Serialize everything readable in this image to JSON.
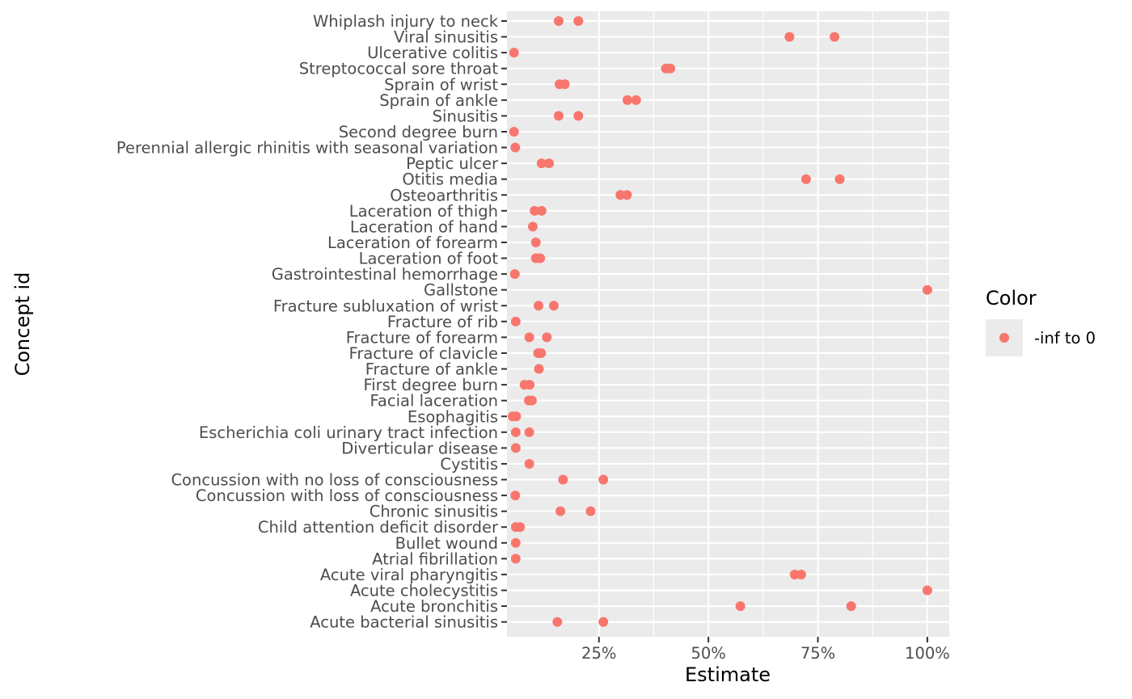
{
  "chart_data": {
    "type": "scatter",
    "title": "",
    "xlabel": "Estimate",
    "ylabel": "Concept id",
    "xlim": [
      0.04,
      1.05
    ],
    "x_ticks": [
      {
        "value": 0.25,
        "label": "25%"
      },
      {
        "value": 0.5,
        "label": "50%"
      },
      {
        "value": 0.75,
        "label": "75%"
      },
      {
        "value": 1.0,
        "label": "100%"
      }
    ],
    "grid": true,
    "legend": {
      "title": "Color",
      "position": "right",
      "entries": [
        {
          "label": "-inf to 0",
          "color": "#F8766D"
        }
      ]
    },
    "point_color": "#F8766D",
    "categories": [
      "Whiplash injury to neck",
      "Viral sinusitis",
      "Ulcerative colitis",
      "Streptococcal sore throat",
      "Sprain of wrist",
      "Sprain of ankle",
      "Sinusitis",
      "Second degree burn",
      "Perennial allergic rhinitis with seasonal variation",
      "Peptic ulcer",
      "Otitis media",
      "Osteoarthritis",
      "Laceration of thigh",
      "Laceration of hand",
      "Laceration of forearm",
      "Laceration of foot",
      "Gastrointestinal hemorrhage",
      "Gallstone",
      "Fracture subluxation of wrist",
      "Fracture of rib",
      "Fracture of forearm",
      "Fracture of clavicle",
      "Fracture of ankle",
      "First degree burn",
      "Facial laceration",
      "Esophagitis",
      "Escherichia coli urinary tract infection",
      "Diverticular disease",
      "Cystitis",
      "Concussion with no loss of consciousness",
      "Concussion with loss of consciousness",
      "Chronic sinusitis",
      "Child attention deficit disorder",
      "Bullet wound",
      "Atrial fibrillation",
      "Acute viral pharyngitis",
      "Acute cholecystitis",
      "Acute bronchitis",
      "Acute bacterial sinusitis"
    ],
    "points": [
      {
        "category": "Whiplash injury to neck",
        "values": [
          0.158,
          0.203
        ]
      },
      {
        "category": "Viral sinusitis",
        "values": [
          0.685,
          0.788
        ]
      },
      {
        "category": "Ulcerative colitis",
        "values": [
          0.056
        ]
      },
      {
        "category": "Streptococcal sore throat",
        "values": [
          0.403,
          0.413
        ]
      },
      {
        "category": "Sprain of wrist",
        "values": [
          0.16,
          0.172
        ]
      },
      {
        "category": "Sprain of ankle",
        "values": [
          0.315,
          0.335
        ]
      },
      {
        "category": "Sinusitis",
        "values": [
          0.158,
          0.203
        ]
      },
      {
        "category": "Second degree burn",
        "values": [
          0.056
        ]
      },
      {
        "category": "Perennial allergic rhinitis with seasonal variation",
        "values": [
          0.059
        ]
      },
      {
        "category": "Peptic ulcer",
        "values": [
          0.119,
          0.136
        ]
      },
      {
        "category": "Otitis media",
        "values": [
          0.723,
          0.8
        ]
      },
      {
        "category": "Osteoarthritis",
        "values": [
          0.299,
          0.314
        ]
      },
      {
        "category": "Laceration of thigh",
        "values": [
          0.103,
          0.119
        ]
      },
      {
        "category": "Laceration of hand",
        "values": [
          0.099
        ]
      },
      {
        "category": "Laceration of forearm",
        "values": [
          0.106
        ]
      },
      {
        "category": "Laceration of foot",
        "values": [
          0.106,
          0.116
        ]
      },
      {
        "category": "Gastrointestinal hemorrhage",
        "values": [
          0.058
        ]
      },
      {
        "category": "Gallstone",
        "values": [
          1.0
        ]
      },
      {
        "category": "Fracture subluxation of wrist",
        "values": [
          0.112,
          0.147
        ]
      },
      {
        "category": "Fracture of rib",
        "values": [
          0.06
        ]
      },
      {
        "category": "Fracture of forearm",
        "values": [
          0.091,
          0.131
        ]
      },
      {
        "category": "Fracture of clavicle",
        "values": [
          0.111,
          0.118
        ]
      },
      {
        "category": "Fracture of ankle",
        "values": [
          0.113
        ]
      },
      {
        "category": "First degree burn",
        "values": [
          0.08,
          0.092
        ]
      },
      {
        "category": "Facial laceration",
        "values": [
          0.09,
          0.097
        ]
      },
      {
        "category": "Esophagitis",
        "values": [
          0.053,
          0.061
        ]
      },
      {
        "category": "Escherichia coli urinary tract infection",
        "values": [
          0.06,
          0.091
        ]
      },
      {
        "category": "Diverticular disease",
        "values": [
          0.06
        ]
      },
      {
        "category": "Cystitis",
        "values": [
          0.091
        ]
      },
      {
        "category": "Concussion with no loss of consciousness",
        "values": [
          0.168,
          0.26
        ]
      },
      {
        "category": "Concussion with loss of consciousness",
        "values": [
          0.059
        ]
      },
      {
        "category": "Chronic sinusitis",
        "values": [
          0.162,
          0.231
        ]
      },
      {
        "category": "Child attention deficit disorder",
        "values": [
          0.06,
          0.07
        ]
      },
      {
        "category": "Bullet wound",
        "values": [
          0.06
        ]
      },
      {
        "category": "Atrial fibrillation",
        "values": [
          0.06
        ]
      },
      {
        "category": "Acute viral pharyngitis",
        "values": [
          0.697,
          0.712
        ]
      },
      {
        "category": "Acute cholecystitis",
        "values": [
          1.0
        ]
      },
      {
        "category": "Acute bronchitis",
        "values": [
          0.573,
          0.826
        ]
      },
      {
        "category": "Acute bacterial sinusitis",
        "values": [
          0.155,
          0.26
        ]
      }
    ]
  }
}
